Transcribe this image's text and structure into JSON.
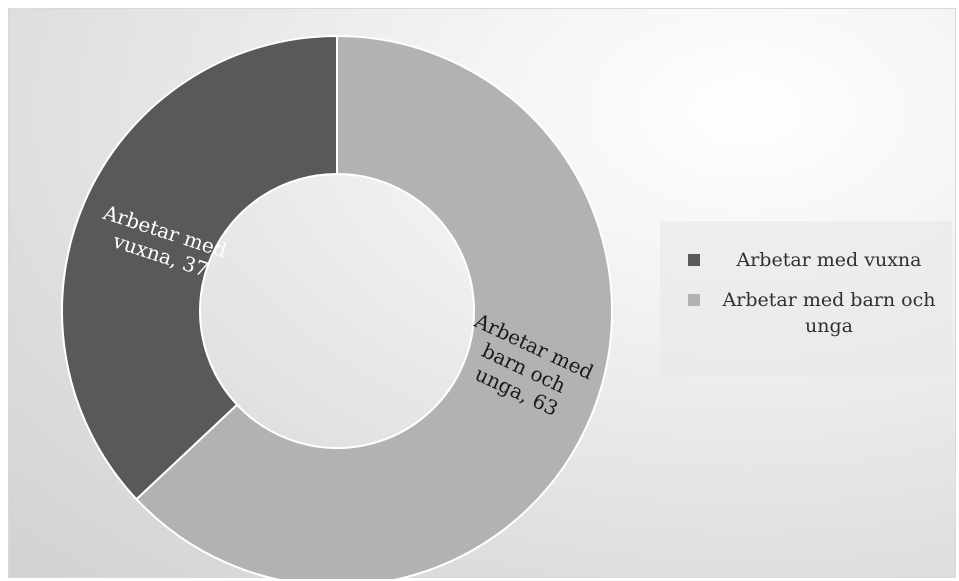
{
  "chart_data": {
    "type": "pie",
    "variant": "donut",
    "categories": [
      "Arbetar med vuxna",
      "Arbetar med barn och unga"
    ],
    "values": [
      37,
      63
    ],
    "colors": [
      "#595959",
      "#b2b2b2"
    ],
    "data_labels": [
      {
        "line1": "Arbetar med",
        "line2": "vuxna, 37"
      },
      {
        "line1": "Arbetar med",
        "line2": "barn och",
        "line3": "unga, 63"
      }
    ],
    "legend": {
      "placement": "right",
      "entries": [
        {
          "label": "Arbetar med vuxna",
          "color": "#595959"
        },
        {
          "label": "Arbetar med barn och unga",
          "color": "#b2b2b2"
        }
      ]
    }
  }
}
